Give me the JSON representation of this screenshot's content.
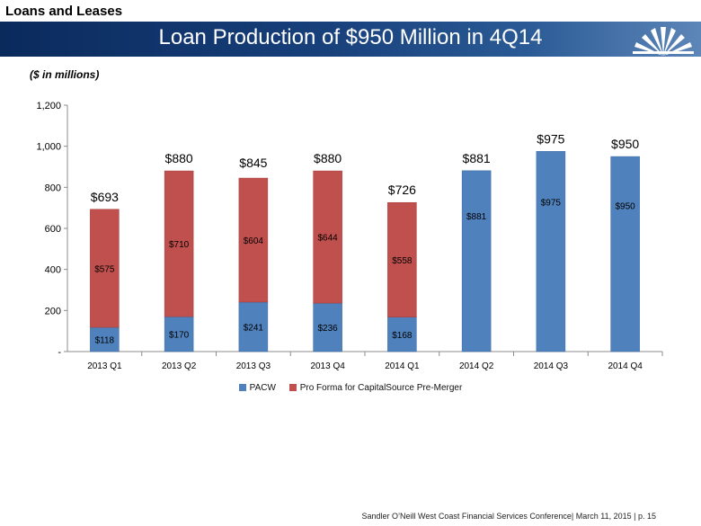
{
  "section_label": "Loans and Leases",
  "banner_title": "Loan Production of $950 Million in 4Q14",
  "units_note": "($ in millions)",
  "footer_text": "Sandler O’Neill West Coast Financial Services Conference| March 11, 2015 | p. 15",
  "colors": {
    "pacw": "#4f81bd",
    "proforma": "#c0504d"
  },
  "chart_data": {
    "type": "bar",
    "stacked": true,
    "title": "Loan Production of $950 Million in 4Q14",
    "ylabel": "($ in millions)",
    "xlabel": "",
    "ylim": [
      0,
      1200
    ],
    "yticks": [
      0,
      200,
      400,
      600,
      800,
      1000,
      1200
    ],
    "ytick_labels": [
      "-",
      "200",
      "400",
      "600",
      "800",
      "1,000",
      "1,200"
    ],
    "categories": [
      "2013 Q1",
      "2013 Q2",
      "2013 Q3",
      "2013 Q4",
      "2014 Q1",
      "2014 Q2",
      "2014 Q3",
      "2014 Q4"
    ],
    "series": [
      {
        "name": "PACW",
        "values": [
          118,
          170,
          241,
          236,
          168,
          881,
          975,
          950
        ],
        "labels": [
          "$118",
          "$170",
          "$241",
          "$236",
          "$168",
          "$881",
          "$975",
          "$950"
        ]
      },
      {
        "name": "Pro Forma for CapitalSource Pre-Merger",
        "values": [
          575,
          710,
          604,
          644,
          558,
          0,
          0,
          0
        ],
        "labels": [
          "$575",
          "$710",
          "$604",
          "$644",
          "$558",
          "",
          "",
          ""
        ]
      }
    ],
    "totals": [
      693,
      880,
      845,
      880,
      726,
      881,
      975,
      950
    ],
    "total_labels": [
      "$693",
      "$880",
      "$845",
      "$880",
      "$726",
      "$881",
      "$975",
      "$950"
    ],
    "legend_position": "bottom"
  }
}
